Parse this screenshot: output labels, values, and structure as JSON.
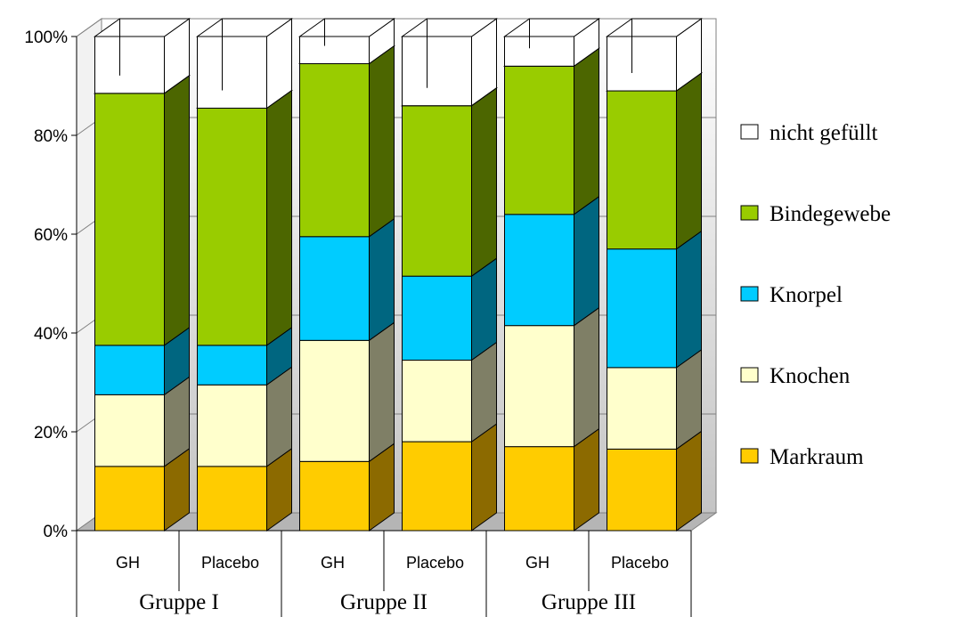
{
  "chart_data": {
    "type": "bar",
    "stacked": true,
    "percent": true,
    "three_d": true,
    "title": "",
    "xlabel": "",
    "ylabel": "",
    "ylim": [
      0,
      100
    ],
    "y_ticks": [
      "0%",
      "20%",
      "40%",
      "60%",
      "80%",
      "100%"
    ],
    "grid": true,
    "legend_position": "right",
    "categories": [
      "GH",
      "Placebo",
      "GH",
      "Placebo",
      "GH",
      "Placebo"
    ],
    "groups": [
      {
        "label": "Gruppe I",
        "categories": [
          "GH",
          "Placebo"
        ]
      },
      {
        "label": "Gruppe II",
        "categories": [
          "GH",
          "Placebo"
        ]
      },
      {
        "label": "Gruppe III",
        "categories": [
          "GH",
          "Placebo"
        ]
      }
    ],
    "series": [
      {
        "name": "Markraum",
        "color": "#FFCC00",
        "side_color": "#8C6A00",
        "values": [
          13,
          13,
          14,
          18,
          17,
          16.5
        ]
      },
      {
        "name": "Knochen",
        "color": "#FFFFCC",
        "side_color": "#7F7F66",
        "values": [
          14.5,
          16.5,
          24.5,
          16.5,
          24.5,
          16.5
        ]
      },
      {
        "name": "Knorpel",
        "color": "#00CCFF",
        "side_color": "#006680",
        "values": [
          10,
          8,
          21,
          17,
          22.5,
          24
        ]
      },
      {
        "name": "Bindegewebe",
        "color": "#99CC00",
        "side_color": "#4C6600",
        "values": [
          51,
          48,
          35,
          34.5,
          30,
          32
        ]
      },
      {
        "name": "nicht gefüllt",
        "color": "#FFFFFF",
        "side_color": "#FFFFFF",
        "values": [
          11.5,
          14.5,
          5.5,
          14,
          6,
          11
        ]
      }
    ]
  }
}
